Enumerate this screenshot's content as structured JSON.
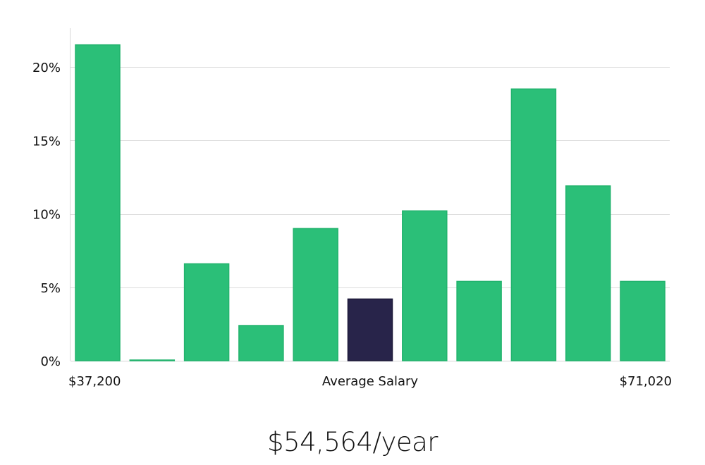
{
  "chart_data": {
    "type": "bar",
    "title": "",
    "ylabel": "",
    "xlabel": "Average Salary",
    "ylim": [
      0,
      22.5
    ],
    "yticks": [
      {
        "value": 0,
        "label": "0%"
      },
      {
        "value": 5,
        "label": "5%"
      },
      {
        "value": 10,
        "label": "10%"
      },
      {
        "value": 15,
        "label": "15%"
      },
      {
        "value": 20,
        "label": "20%"
      }
    ],
    "x_min_label": "$37,200",
    "x_max_label": "$71,020",
    "values": [
      21.5,
      0.05,
      6.6,
      2.4,
      9.0,
      4.2,
      10.2,
      5.4,
      18.5,
      11.9,
      5.4
    ],
    "highlight_index": 5,
    "colors": {
      "bar": "#2bbf78",
      "highlight": "#28244a",
      "grid": "#dddddd",
      "axis": "#d6d6d6"
    }
  },
  "salary_text": "$54,564/year"
}
